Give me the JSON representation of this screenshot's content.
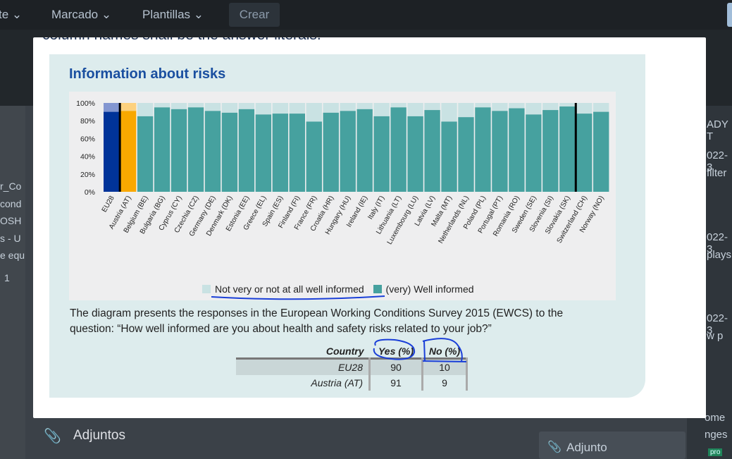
{
  "topbar": {
    "nav_fragment": "te",
    "nav_marcado": "Marcado",
    "nav_plantillas": "Plantillas",
    "crear_label": "Crear",
    "chevron": "⌄"
  },
  "background": {
    "left_fragments": [
      "r_Co",
      "cond",
      "OSH",
      "s - U",
      "e equ",
      "1"
    ],
    "right_fragments": [
      "ADY T",
      "022-3",
      "filter",
      "022-3",
      "plays",
      "022-3",
      "w p",
      "ome",
      "nges",
      "pro"
    ],
    "adjuntos_title": "Adjuntos",
    "adjunto_button": "Adjunto"
  },
  "modal": {
    "cut_text": "column names shall be the answer literals.",
    "panel_title": "Information about risks",
    "legend": {
      "not_informed": "Not very or not at all well informed",
      "well_informed": "(very) Well informed"
    },
    "description": "The diagram presents the responses in the European Working Conditions Survey 2015 (EWCS) to the question: “How well informed are you about health and safety risks related to your job?”",
    "table": {
      "headers": [
        "Country",
        "Yes (%)",
        "No (%)"
      ],
      "rows": [
        [
          "EU28",
          "90",
          "10"
        ],
        [
          "Austria (AT)",
          "91",
          "9"
        ]
      ]
    }
  },
  "chart_data": {
    "type": "bar",
    "title": "Information about risks",
    "stacked": true,
    "ylim": [
      0,
      100
    ],
    "yticks": [
      "0%",
      "20%",
      "40%",
      "60%",
      "80%",
      "100%"
    ],
    "categories": [
      "EU28",
      "Austria (AT)",
      "Belgium (BE)",
      "Bulgaria (BG)",
      "Cyprus (CY)",
      "Czechia (CZ)",
      "Germany (DE)",
      "Denmark (DK)",
      "Estonia (EE)",
      "Greece (EL)",
      "Spain (ES)",
      "Finland (FI)",
      "France (FR)",
      "Croatia (HR)",
      "Hungary (HU)",
      "Ireland (IE)",
      "Italy (IT)",
      "Lithuania (LT)",
      "Luxembourg (LU)",
      "Latvia (LV)",
      "Malta (MT)",
      "Netherlands (NL)",
      "Poland (PL)",
      "Portugal (PT)",
      "Romania (RO)",
      "Sweden (SE)",
      "Slovenia (SI)",
      "Slovakia (SK)",
      "Switzerland (CH)",
      "Norway (NO)"
    ],
    "series": [
      {
        "name": "(very) Well informed",
        "values": [
          90,
          91,
          85,
          95,
          93,
          95,
          91,
          89,
          93,
          87,
          88,
          88,
          79,
          89,
          91,
          93,
          85,
          95,
          85,
          92,
          79,
          84,
          95,
          91,
          94,
          87,
          92,
          96,
          88,
          90
        ]
      },
      {
        "name": "Not very or not at all well informed",
        "values": [
          10,
          9,
          15,
          5,
          7,
          5,
          9,
          11,
          7,
          13,
          12,
          12,
          21,
          11,
          9,
          7,
          15,
          5,
          15,
          8,
          21,
          16,
          5,
          9,
          6,
          13,
          8,
          4,
          12,
          10
        ]
      }
    ],
    "colors": {
      "well": "#46a19f",
      "not": "#c9e2e3",
      "eu_well": "#003399",
      "eu_not": "#8396d1",
      "at_well": "#f9a800",
      "at_not": "#fdd17e"
    },
    "legend_position": "bottom"
  }
}
